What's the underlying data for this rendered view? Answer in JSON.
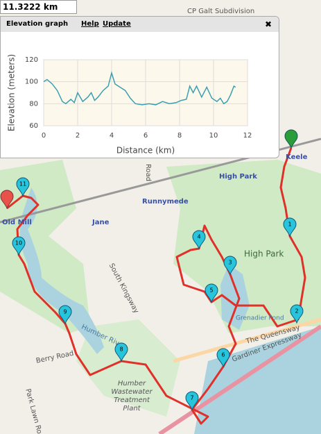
{
  "distance_box": "11.3222 km",
  "panel": {
    "title": "Elevation graph",
    "links": [
      "Help",
      "Update"
    ],
    "close": "✖"
  },
  "chart_data": {
    "type": "line",
    "x_label": "Distance (km)",
    "y_label": "Elevation (meters)",
    "x": [
      0,
      0.2,
      0.5,
      0.8,
      1.1,
      1.3,
      1.6,
      1.8,
      2.0,
      2.3,
      2.6,
      2.8,
      3.0,
      3.2,
      3.5,
      3.8,
      4.0,
      4.2,
      4.5,
      4.8,
      5.1,
      5.4,
      5.8,
      6.2,
      6.6,
      7.0,
      7.4,
      7.8,
      8.1,
      8.4,
      8.6,
      8.8,
      9.0,
      9.3,
      9.6,
      9.9,
      10.2,
      10.4,
      10.6,
      10.8,
      11.0,
      11.2,
      11.3
    ],
    "series": [
      {
        "color": "#3a9fb0",
        "values": [
          100,
          102,
          98,
          92,
          82,
          80,
          84,
          81,
          90,
          82,
          86,
          90,
          83,
          86,
          92,
          96,
          108,
          98,
          95,
          92,
          85,
          80,
          79,
          80,
          79,
          82,
          80,
          81,
          83,
          84,
          96,
          90,
          96,
          86,
          95,
          85,
          82,
          85,
          80,
          82,
          88,
          96,
          95
        ]
      }
    ],
    "xlim": [
      0,
      12
    ],
    "xticks": [
      0,
      2,
      4,
      6,
      8,
      10,
      12
    ],
    "ylim": [
      60,
      120
    ],
    "yticks": [
      60,
      80,
      100,
      120
    ],
    "grid": true
  },
  "map": {
    "labels": [
      "CP Galt Subdivision",
      "Keele",
      "High Park",
      "Runnymede",
      "Old Mill",
      "Jane",
      "High Park",
      "South Kingsway",
      "Humber River",
      "Grenadier Pond",
      "The Queensway",
      "Gardiner Expressway",
      "Berry Road",
      "Park Lawn Road",
      "Humber",
      "Wastewater",
      "Treatment",
      "Plant",
      "Road"
    ],
    "markers": [
      "1",
      "2",
      "3",
      "4",
      "5",
      "6",
      "7",
      "8",
      "9",
      "10",
      "11"
    ]
  }
}
